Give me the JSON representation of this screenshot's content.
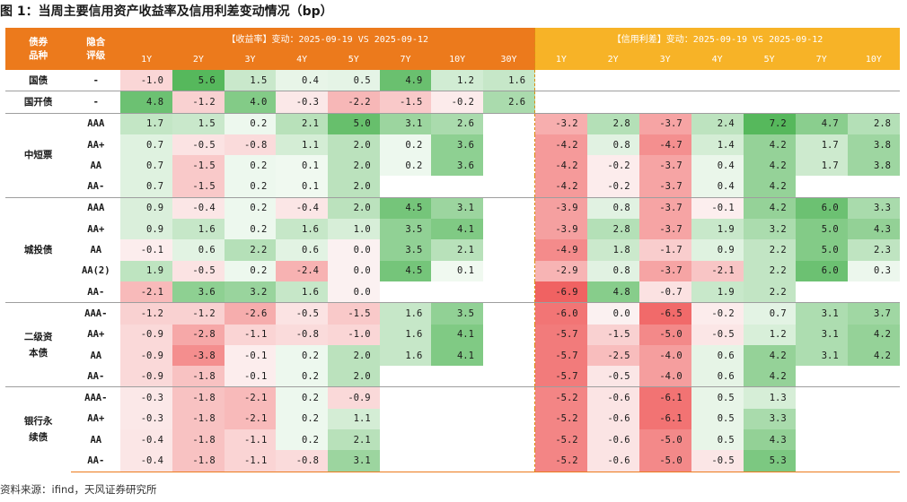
{
  "title": "图 1：当周主要信用资产收益率及信用利差变动情况（bp）",
  "source": "资料来源：ifind，天风证券研究所",
  "header": {
    "col_bond": "债券品种",
    "col_grade": "隐含评级",
    "yield_group": "【收益率】变动：2025-09-19 VS 2025-09-12",
    "spread_group": "【信用利差】变动：2025-09-19 VS 2025-09-12",
    "yield_tenors": [
      "1Y",
      "2Y",
      "3Y",
      "4Y",
      "5Y",
      "7Y",
      "10Y",
      "30Y"
    ],
    "spread_tenors": [
      "1Y",
      "2Y",
      "3Y",
      "4Y",
      "5Y",
      "7Y",
      "10Y"
    ]
  },
  "colors": {
    "header_orange": "#ec7a1c",
    "header_yellow": "#f7b327",
    "positive": "#3aa63f",
    "negative": "#ee3b3b"
  },
  "groups": [
    {
      "name": "国债",
      "rows": [
        {
          "grade": "-",
          "yields": [
            -1.0,
            5.6,
            1.5,
            0.4,
            0.5,
            4.9,
            1.2,
            1.6
          ],
          "spreads": []
        }
      ]
    },
    {
      "name": "国开债",
      "rows": [
        {
          "grade": "-",
          "yields": [
            4.8,
            -1.2,
            4.0,
            -0.3,
            -2.2,
            -1.5,
            -0.2,
            2.6
          ],
          "spreads": []
        }
      ]
    },
    {
      "name": "中短票",
      "rows": [
        {
          "grade": "AAA",
          "yields": [
            1.7,
            1.5,
            0.2,
            2.1,
            5.0,
            3.1,
            2.6,
            null
          ],
          "spreads": [
            -3.2,
            2.8,
            -3.7,
            2.4,
            7.2,
            4.7,
            2.8
          ]
        },
        {
          "grade": "AA+",
          "yields": [
            0.7,
            -0.5,
            -0.8,
            1.1,
            2.0,
            0.2,
            3.6,
            null
          ],
          "spreads": [
            -4.2,
            0.8,
            -4.7,
            1.4,
            4.2,
            1.7,
            3.8
          ]
        },
        {
          "grade": "AA",
          "yields": [
            0.7,
            -1.5,
            0.2,
            0.1,
            2.0,
            0.2,
            3.6,
            null
          ],
          "spreads": [
            -4.2,
            -0.2,
            -3.7,
            0.4,
            4.2,
            1.7,
            3.8
          ]
        },
        {
          "grade": "AA-",
          "yields": [
            0.7,
            -1.5,
            0.2,
            0.1,
            2.0,
            null,
            null,
            null
          ],
          "spreads": [
            -4.2,
            -0.2,
            -3.7,
            0.4,
            4.2,
            null,
            null
          ]
        }
      ]
    },
    {
      "name": "城投债",
      "rows": [
        {
          "grade": "AAA",
          "yields": [
            0.9,
            -0.4,
            0.2,
            -0.4,
            2.0,
            4.5,
            3.1,
            null
          ],
          "spreads": [
            -3.9,
            0.8,
            -3.7,
            -0.1,
            4.2,
            6.0,
            3.3
          ]
        },
        {
          "grade": "AA+",
          "yields": [
            0.9,
            1.6,
            0.2,
            1.6,
            1.0,
            3.5,
            4.1,
            null
          ],
          "spreads": [
            -3.9,
            2.8,
            -3.7,
            1.9,
            3.2,
            5.0,
            4.3
          ]
        },
        {
          "grade": "AA",
          "yields": [
            -0.1,
            0.6,
            2.2,
            0.6,
            0.0,
            3.5,
            2.1,
            null
          ],
          "spreads": [
            -4.9,
            1.8,
            -1.7,
            0.9,
            2.2,
            5.0,
            2.3
          ]
        },
        {
          "grade": "AA(2)",
          "yields": [
            1.9,
            -0.5,
            0.2,
            -2.4,
            0.0,
            4.5,
            0.1,
            null
          ],
          "spreads": [
            -2.9,
            0.8,
            -3.7,
            -2.1,
            2.2,
            6.0,
            0.3
          ]
        },
        {
          "grade": "AA-",
          "yields": [
            -2.1,
            3.6,
            3.2,
            1.6,
            0.0,
            null,
            null,
            null
          ],
          "spreads": [
            -6.9,
            4.8,
            -0.7,
            1.9,
            2.2,
            null,
            null
          ]
        }
      ]
    },
    {
      "name": "二级资本债",
      "rows": [
        {
          "grade": "AAA-",
          "yields": [
            -1.2,
            -1.2,
            -2.6,
            -0.5,
            -1.5,
            1.6,
            3.5,
            null
          ],
          "spreads": [
            -6.0,
            0.0,
            -6.5,
            -0.2,
            0.7,
            3.1,
            3.7
          ]
        },
        {
          "grade": "AA+",
          "yields": [
            -0.9,
            -2.8,
            -1.1,
            -0.8,
            -1.0,
            1.6,
            4.1,
            null
          ],
          "spreads": [
            -5.7,
            -1.5,
            -5.0,
            -0.5,
            1.2,
            3.1,
            4.2
          ]
        },
        {
          "grade": "AA",
          "yields": [
            -0.9,
            -3.8,
            -0.1,
            0.2,
            2.0,
            1.6,
            4.1,
            null
          ],
          "spreads": [
            -5.7,
            -2.5,
            -4.0,
            0.6,
            4.2,
            3.1,
            4.2
          ]
        },
        {
          "grade": "AA-",
          "yields": [
            -0.9,
            -1.8,
            -0.1,
            0.2,
            2.0,
            null,
            null,
            null
          ],
          "spreads": [
            -5.7,
            -0.5,
            -4.0,
            0.6,
            4.2,
            null,
            null
          ]
        }
      ]
    },
    {
      "name": "银行永续债",
      "rows": [
        {
          "grade": "AAA-",
          "yields": [
            -0.3,
            -1.8,
            -2.1,
            0.2,
            -0.9,
            null,
            null,
            null
          ],
          "spreads": [
            -5.2,
            -0.6,
            -6.1,
            0.5,
            1.3,
            null,
            null
          ]
        },
        {
          "grade": "AA+",
          "yields": [
            -0.3,
            -1.8,
            -2.1,
            0.2,
            1.1,
            null,
            null,
            null
          ],
          "spreads": [
            -5.2,
            -0.6,
            -6.1,
            0.5,
            3.3,
            null,
            null
          ]
        },
        {
          "grade": "AA",
          "yields": [
            -0.4,
            -1.8,
            -1.1,
            0.2,
            2.1,
            null,
            null,
            null
          ],
          "spreads": [
            -5.2,
            -0.6,
            -5.0,
            0.5,
            4.3,
            null,
            null
          ]
        },
        {
          "grade": "AA-",
          "yields": [
            -0.4,
            -1.8,
            -1.1,
            -0.8,
            3.1,
            null,
            null,
            null
          ],
          "spreads": [
            -5.2,
            -0.6,
            -5.0,
            -0.5,
            5.3,
            null,
            null
          ]
        }
      ]
    }
  ]
}
